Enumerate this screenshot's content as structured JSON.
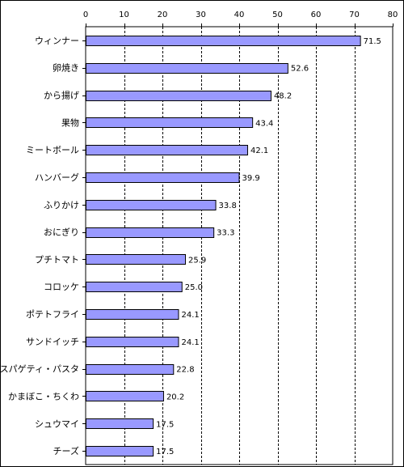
{
  "chart_data": {
    "type": "bar",
    "orientation": "horizontal",
    "categories": [
      "ウィンナー",
      "卵焼き",
      "から揚げ",
      "果物",
      "ミートボール",
      "ハンバーグ",
      "ふりかけ",
      "おにぎり",
      "プチトマト",
      "コロッケ",
      "ポテトフライ",
      "サンドイッチ",
      "スパゲティ・パスタ",
      "かまぼこ・ちくわ",
      "シュウマイ",
      "チーズ"
    ],
    "values": [
      71.5,
      52.6,
      48.2,
      43.4,
      42.1,
      39.9,
      33.8,
      33.3,
      25.9,
      25.0,
      24.1,
      24.1,
      22.8,
      20.2,
      17.5,
      17.5
    ],
    "value_labels": [
      "71.5",
      "52.6",
      "48.2",
      "43.4",
      "42.1",
      "39.9",
      "33.8",
      "33.3",
      "25.9",
      "25.0",
      "24.1",
      "24.1",
      "22.8",
      "20.2",
      "17.5",
      "17.5"
    ],
    "xlim": [
      0,
      80
    ],
    "x_ticks": [
      "0",
      "10",
      "20",
      "30",
      "40",
      "50",
      "60",
      "70",
      "80"
    ],
    "x_axis_position": "top",
    "grid": "vertical dashed",
    "bar_color": "#9999ff",
    "bar_edge_color": "#000000",
    "title": "",
    "xlabel": "",
    "ylabel": ""
  }
}
